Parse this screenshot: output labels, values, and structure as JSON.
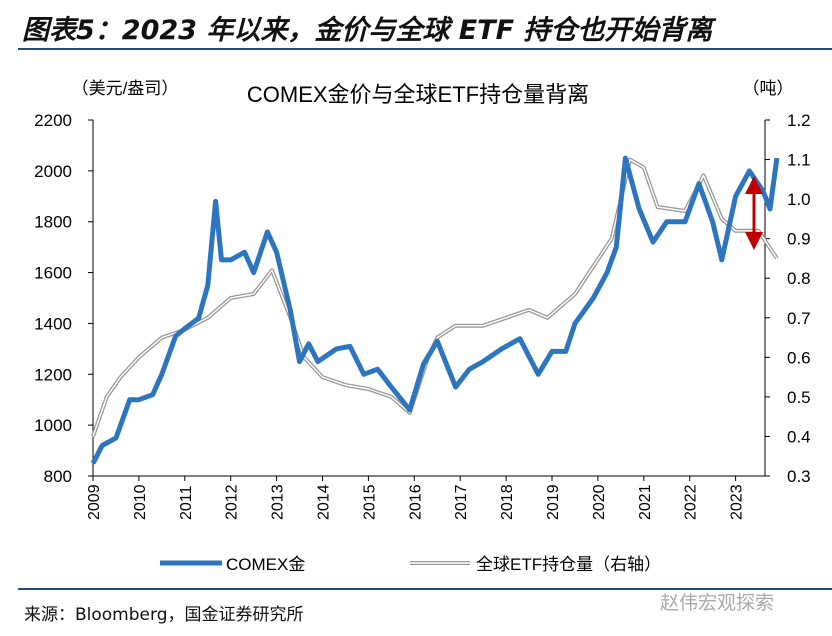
{
  "figure_title": "图表5：2023 年以来，金价与全球 ETF 持仓也开始背离",
  "source": "来源：Bloomberg，国金证券研究所",
  "watermark": "赵伟宏观探索",
  "chart_data": {
    "type": "line",
    "title": "COMEX金价与全球ETF持仓量背离",
    "ylabel": "（美元/盎司）",
    "y2label": "（吨）",
    "ylim": [
      800,
      2200
    ],
    "y2lim": [
      0.3,
      1.2
    ],
    "xlim": [
      2009,
      2023.9
    ],
    "yticks": [
      "800",
      "1000",
      "1200",
      "1400",
      "1600",
      "1800",
      "2000",
      "2200"
    ],
    "y2ticks": [
      "0.3",
      "0.4",
      "0.5",
      "0.6",
      "0.7",
      "0.8",
      "0.9",
      "1.0",
      "1.1",
      "1.2"
    ],
    "xticks": [
      "2009",
      "2010",
      "2011",
      "2012",
      "2013",
      "2014",
      "2015",
      "2016",
      "2017",
      "2018",
      "2019",
      "2020",
      "2021",
      "2022",
      "2023"
    ],
    "colors": {
      "gold": "#2e75c0",
      "etf": "#b0b0b0",
      "arrow": "#c00000"
    },
    "series": [
      {
        "name": "COMEX金",
        "axis": "left",
        "x": [
          2009.0,
          2009.2,
          2009.5,
          2009.8,
          2010.0,
          2010.3,
          2010.5,
          2010.8,
          2011.0,
          2011.3,
          2011.5,
          2011.67,
          2011.8,
          2012.0,
          2012.3,
          2012.5,
          2012.8,
          2013.0,
          2013.3,
          2013.5,
          2013.7,
          2013.9,
          2014.3,
          2014.6,
          2014.9,
          2015.2,
          2015.5,
          2015.9,
          2016.2,
          2016.5,
          2016.9,
          2017.2,
          2017.5,
          2017.9,
          2018.3,
          2018.7,
          2019.0,
          2019.3,
          2019.5,
          2019.9,
          2020.2,
          2020.4,
          2020.6,
          2020.9,
          2021.2,
          2021.5,
          2021.9,
          2022.2,
          2022.5,
          2022.7,
          2023.0,
          2023.3,
          2023.6,
          2023.75,
          2023.9
        ],
        "y": [
          850,
          920,
          950,
          1100,
          1100,
          1120,
          1200,
          1350,
          1380,
          1420,
          1550,
          1880,
          1650,
          1650,
          1680,
          1600,
          1760,
          1680,
          1450,
          1250,
          1320,
          1250,
          1300,
          1310,
          1200,
          1220,
          1150,
          1060,
          1240,
          1330,
          1150,
          1220,
          1250,
          1300,
          1340,
          1200,
          1290,
          1290,
          1400,
          1500,
          1600,
          1700,
          2050,
          1850,
          1720,
          1800,
          1800,
          1950,
          1800,
          1650,
          1900,
          2000,
          1920,
          1850,
          2050
        ]
      },
      {
        "name": "全球ETF持仓量（右轴）",
        "axis": "right",
        "x": [
          2009.0,
          2009.3,
          2009.6,
          2010.0,
          2010.5,
          2011.0,
          2011.5,
          2012.0,
          2012.5,
          2012.9,
          2013.3,
          2013.6,
          2014.0,
          2014.5,
          2015.0,
          2015.5,
          2015.9,
          2016.3,
          2016.5,
          2016.9,
          2017.5,
          2018.0,
          2018.5,
          2018.9,
          2019.5,
          2019.9,
          2020.3,
          2020.7,
          2021.0,
          2021.3,
          2021.9,
          2022.3,
          2022.7,
          2023.0,
          2023.5,
          2023.9
        ],
        "y": [
          0.4,
          0.5,
          0.55,
          0.6,
          0.65,
          0.67,
          0.7,
          0.75,
          0.76,
          0.82,
          0.7,
          0.6,
          0.55,
          0.53,
          0.52,
          0.5,
          0.46,
          0.6,
          0.65,
          0.68,
          0.68,
          0.7,
          0.72,
          0.7,
          0.76,
          0.83,
          0.9,
          1.1,
          1.08,
          0.98,
          0.97,
          1.06,
          0.95,
          0.92,
          0.92,
          0.85
        ]
      }
    ]
  }
}
